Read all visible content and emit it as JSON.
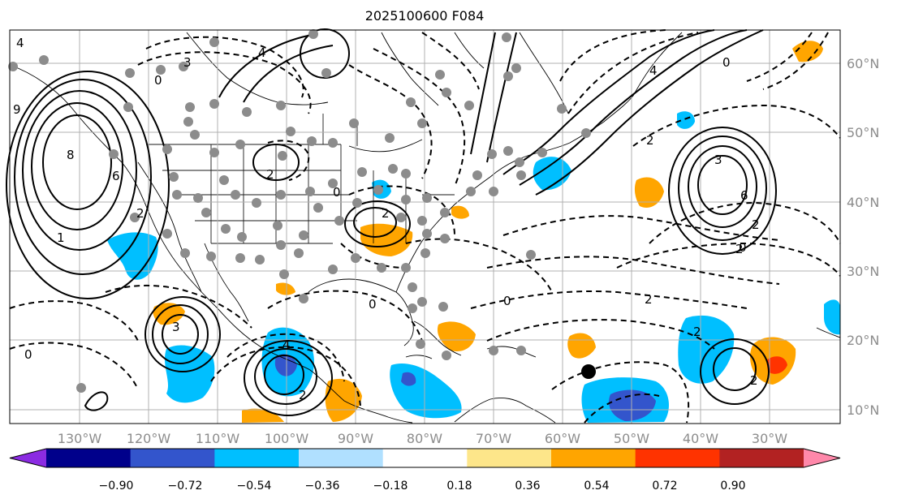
{
  "title": "2025100600 F084",
  "lon_labels": [
    "130°W",
    "120°W",
    "110°W",
    "100°W",
    "90°W",
    "80°W",
    "70°W",
    "60°W",
    "50°W",
    "40°W",
    "30°W"
  ],
  "lat_labels": [
    "60°N",
    "50°N",
    "40°N",
    "30°N",
    "20°N",
    "10°N"
  ],
  "colorbar": {
    "ticks": [
      "−0.90",
      "−0.72",
      "−0.54",
      "−0.36",
      "−0.18",
      "0.18",
      "0.36",
      "0.54",
      "0.72",
      "0.90"
    ],
    "colors": [
      "#8b2be2",
      "#00008b",
      "#3355cc",
      "#00bfff",
      "#b0e0ff",
      "#ffffff",
      "#fde68a",
      "#ffa500",
      "#ff3300",
      "#b22222",
      "#ff88aa"
    ]
  },
  "contour_labels": [
    {
      "text": "4"
    },
    {
      "text": "9"
    },
    {
      "text": "8"
    },
    {
      "text": "6"
    },
    {
      "text": "2"
    },
    {
      "text": "0"
    },
    {
      "text": "3"
    },
    {
      "text": "4"
    },
    {
      "text": "0"
    },
    {
      "text": "2"
    },
    {
      "text": "2"
    },
    {
      "text": "4"
    },
    {
      "text": "2"
    },
    {
      "text": "4"
    },
    {
      "text": "0"
    },
    {
      "text": "3"
    },
    {
      "text": "2"
    },
    {
      "text": "6"
    },
    {
      "text": "2"
    },
    {
      "text": "0"
    },
    {
      "text": "2"
    },
    {
      "text": "0"
    },
    {
      "text": "2"
    },
    {
      "text": "3"
    },
    {
      "text": "0"
    },
    {
      "text": "1"
    },
    {
      "text": "2"
    },
    {
      "text": "2"
    },
    {
      "text": "0"
    }
  ]
}
